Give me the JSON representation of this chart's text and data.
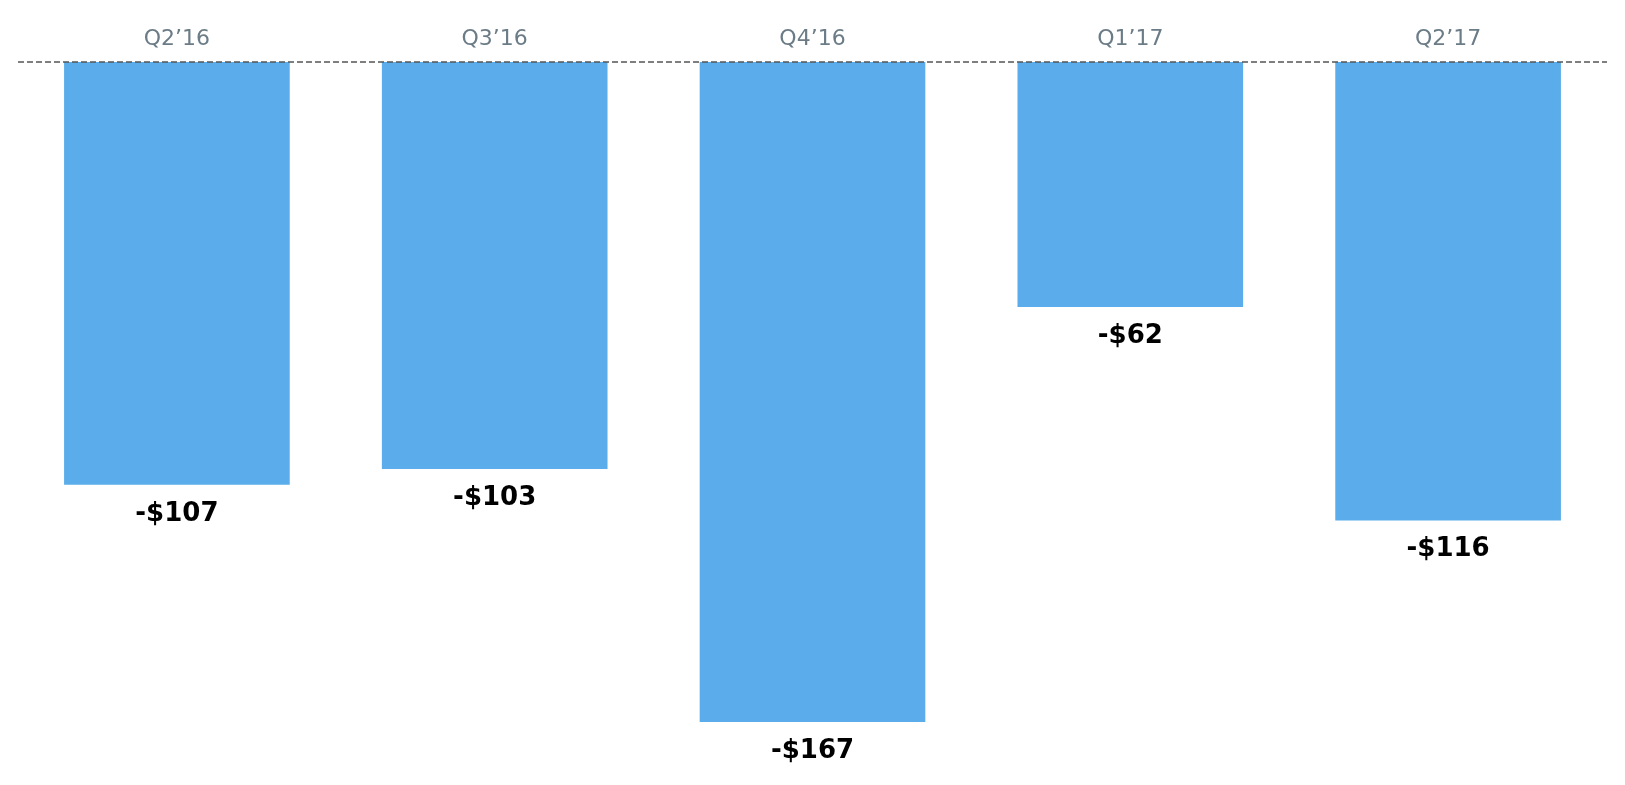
{
  "chart_data": {
    "type": "bar",
    "categories": [
      "Q2’16",
      "Q3’16",
      "Q4’16",
      "Q1’17",
      "Q2’17"
    ],
    "values": [
      -107,
      -103,
      -167,
      -62,
      -116
    ],
    "color": "#5aacea",
    "value_labels": [
      "-$107",
      "-$103",
      "-$167",
      "-$62",
      "-$116"
    ],
    "ref_lines": [
      {
        "axis": "y",
        "value": 0,
        "color": "#555555",
        "line_style": "dashed"
      }
    ]
  }
}
